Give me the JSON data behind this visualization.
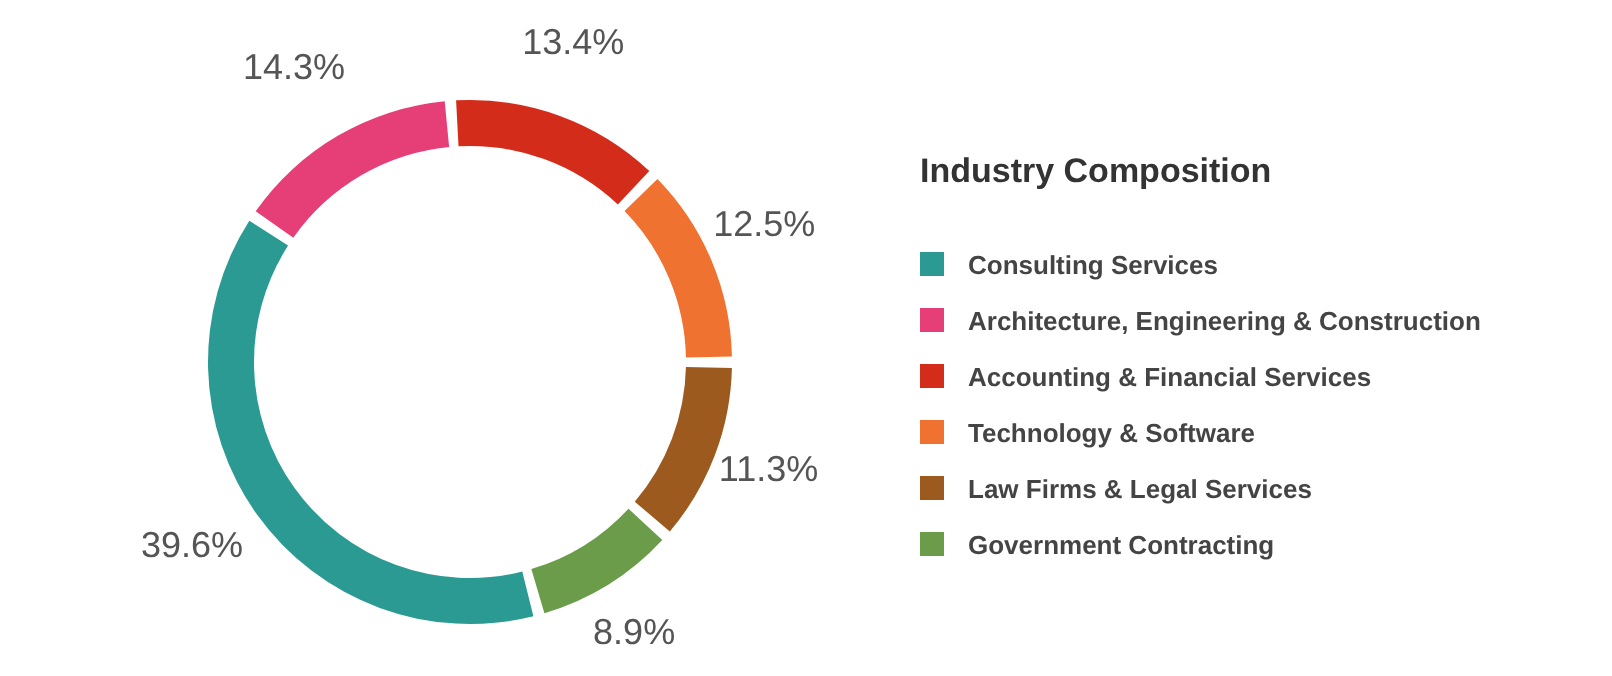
{
  "chart_data": {
    "type": "donut",
    "legend_title": "Industry Composition",
    "legend": "right",
    "categories": [
      "Consulting Services",
      "Architecture, Engineering & Construction",
      "Accounting & Financial Services",
      "Technology & Software",
      "Law Firms & Legal Services",
      "Government Contracting"
    ],
    "values": [
      39.6,
      14.3,
      13.4,
      12.5,
      11.3,
      8.9
    ],
    "colors": [
      "#2a9a93",
      "#e63e76",
      "#d42c1a",
      "#f07230",
      "#9c5a1f",
      "#6a9c4a"
    ],
    "value_labels": [
      "39.6%",
      "14.3%",
      "13.4%",
      "12.5%",
      "11.3%",
      "8.9%"
    ]
  }
}
